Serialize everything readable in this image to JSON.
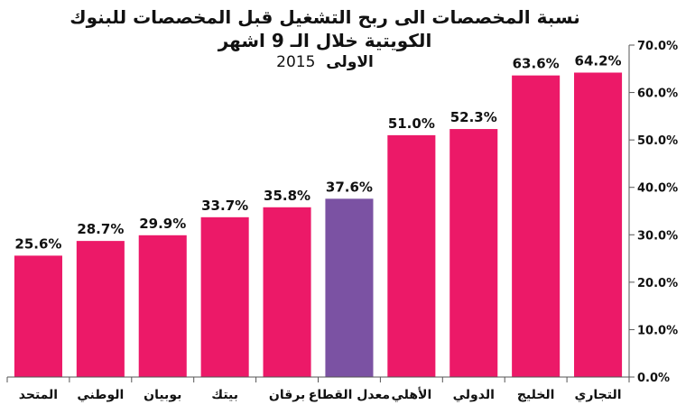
{
  "colors": {
    "bar": "#ec1968",
    "highlight": "#7b52a3",
    "axis": "#555555",
    "text": "#111111"
  },
  "chart_data": {
    "type": "bar",
    "title": "نسبة المخصصات الى ربح التشغيل قبل المخصصات للبنوك الكويتية خلال الـ 9 اشهر",
    "subtitle": "الاولى",
    "subtitle_year": "2015",
    "categories": [
      "المتحد",
      "الوطني",
      "بوبيان",
      "بيتك",
      "برقان",
      "معدل القطاع",
      "الأهلي",
      "الدولي",
      "الخليج",
      "التجاري"
    ],
    "values": [
      25.6,
      28.7,
      29.9,
      33.7,
      35.8,
      37.6,
      51.0,
      52.3,
      63.6,
      64.2
    ],
    "data_labels": [
      "25.6%",
      "28.7%",
      "29.9%",
      "33.7%",
      "35.8%",
      "37.6%",
      "51.0%",
      "52.3%",
      "63.6%",
      "64.2%"
    ],
    "highlight_category": "معدل القطاع",
    "ylim": [
      0,
      70
    ],
    "yticks": [
      "0.0%",
      "10.0%",
      "20.0%",
      "30.0%",
      "40.0%",
      "50.0%",
      "60.0%",
      "70.0%"
    ],
    "yaxis_side": "right",
    "grid": false,
    "xlabel": "",
    "ylabel": ""
  }
}
